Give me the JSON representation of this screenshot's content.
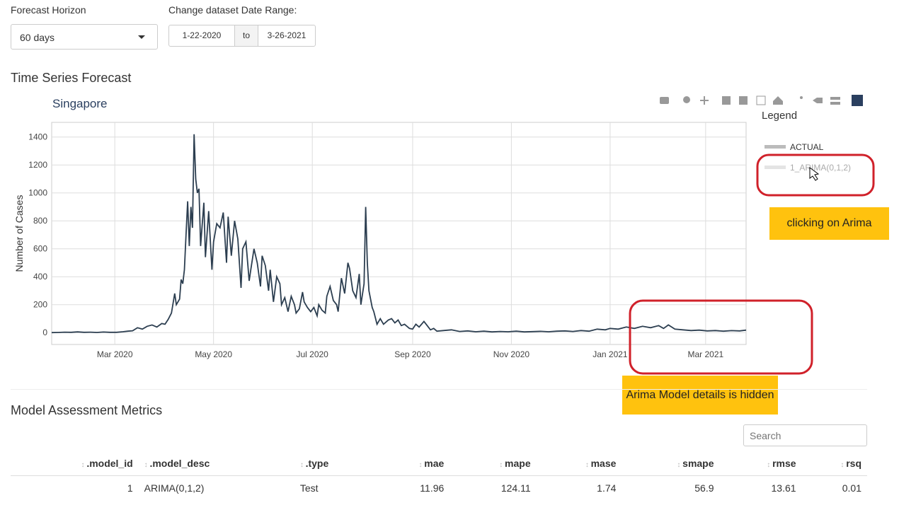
{
  "controls": {
    "horizon_label": "Forecast Horizon",
    "horizon_value": "60 days",
    "range_label": "Change dataset Date Range:",
    "range_start": "1-22-2020",
    "range_sep": "to",
    "range_end": "3-26-2021"
  },
  "section_forecast": "Time Series Forecast",
  "chart_data": {
    "type": "line",
    "title": "Singapore",
    "y_label": "Number of Cases",
    "x": [
      0,
      4,
      8,
      12,
      16,
      20,
      24,
      28,
      32,
      36,
      40,
      44,
      47,
      50,
      53,
      56,
      59,
      62,
      65,
      68,
      70,
      72,
      74,
      76,
      77,
      79,
      80,
      81,
      82,
      83,
      84,
      85,
      86,
      87,
      88,
      89,
      90,
      91,
      92,
      94,
      95,
      97,
      99,
      100,
      102,
      104,
      106,
      108,
      109,
      111,
      113,
      115,
      117,
      118,
      120,
      122,
      123,
      125,
      127,
      129,
      130,
      132,
      134,
      135,
      137,
      139,
      141,
      142,
      144,
      146,
      148,
      150,
      151,
      153,
      155,
      156,
      158,
      160,
      162,
      164,
      165,
      167,
      169,
      170,
      172,
      174,
      176,
      177,
      179,
      181,
      183,
      184,
      186,
      188,
      190,
      191,
      193,
      194,
      195,
      196,
      198,
      199,
      201,
      203,
      205,
      208,
      210,
      212,
      214,
      216,
      218,
      221,
      223,
      225,
      227,
      230,
      232,
      234,
      236,
      238,
      242,
      247,
      252,
      257,
      262,
      267,
      272,
      277,
      282,
      287,
      292,
      297,
      302,
      307,
      312,
      317,
      322,
      327,
      332,
      337,
      342,
      345,
      350,
      355,
      360,
      365,
      370,
      375,
      378,
      381,
      385,
      390,
      395,
      400,
      405,
      410,
      415,
      420,
      425,
      429
    ],
    "series": [
      {
        "name": "ACTUAL",
        "color": "#2c3e50",
        "values": [
          0,
          1,
          3,
          2,
          5,
          2,
          3,
          1,
          4,
          2,
          2,
          6,
          10,
          13,
          35,
          25,
          45,
          55,
          40,
          65,
          60,
          95,
          140,
          280,
          200,
          240,
          380,
          350,
          450,
          700,
          940,
          620,
          900,
          750,
          1420,
          1100,
          1000,
          1030,
          620,
          930,
          540,
          870,
          450,
          650,
          780,
          750,
          860,
          500,
          830,
          550,
          800,
          670,
          320,
          600,
          650,
          370,
          450,
          600,
          500,
          330,
          550,
          480,
          300,
          450,
          220,
          400,
          350,
          200,
          250,
          150,
          260,
          200,
          140,
          170,
          290,
          220,
          180,
          150,
          180,
          120,
          200,
          160,
          140,
          260,
          330,
          230,
          200,
          150,
          390,
          280,
          500,
          460,
          300,
          250,
          420,
          200,
          350,
          900,
          500,
          300,
          180,
          150,
          60,
          100,
          60,
          90,
          100,
          70,
          90,
          50,
          60,
          30,
          25,
          60,
          40,
          80,
          50,
          20,
          30,
          10,
          15,
          20,
          8,
          12,
          6,
          10,
          5,
          8,
          6,
          10,
          5,
          7,
          9,
          6,
          10,
          12,
          8,
          15,
          10,
          25,
          20,
          30,
          25,
          40,
          30,
          45,
          35,
          50,
          30,
          55,
          25,
          20,
          15,
          18,
          12,
          15,
          10,
          14,
          12,
          18
        ]
      }
    ],
    "hidden_series": [
      "1_ARIMA(0,1,2)"
    ],
    "legend_title": "Legend",
    "xlim": [
      0,
      429
    ],
    "xticks": [
      {
        "value": 39,
        "label": "Mar 2020"
      },
      {
        "value": 100,
        "label": "May 2020"
      },
      {
        "value": 161,
        "label": "Jul 2020"
      },
      {
        "value": 223,
        "label": "Sep 2020"
      },
      {
        "value": 284,
        "label": "Nov 2020"
      },
      {
        "value": 345,
        "label": "Jan 2021"
      },
      {
        "value": 404,
        "label": "Mar 2021"
      }
    ],
    "ylim": [
      -85,
      1505
    ],
    "yticks": [
      0,
      200,
      400,
      600,
      800,
      1000,
      1200,
      1400
    ],
    "grid": true
  },
  "annotations": [
    "clicking on Arima",
    "Arima Model details is hidden"
  ],
  "section_metrics": "Model Assessment Metrics",
  "search_placeholder": "Search",
  "table": {
    "header": [
      ".model_id",
      ".model_desc",
      ".type",
      "mae",
      "mape",
      "mase",
      "smape",
      "rmse",
      "rsq"
    ],
    "rows": [
      [
        1,
        "ARIMA(0,1,2)",
        "Test",
        11.96,
        124.11,
        1.74,
        56.9,
        13.61,
        0.01
      ]
    ]
  }
}
